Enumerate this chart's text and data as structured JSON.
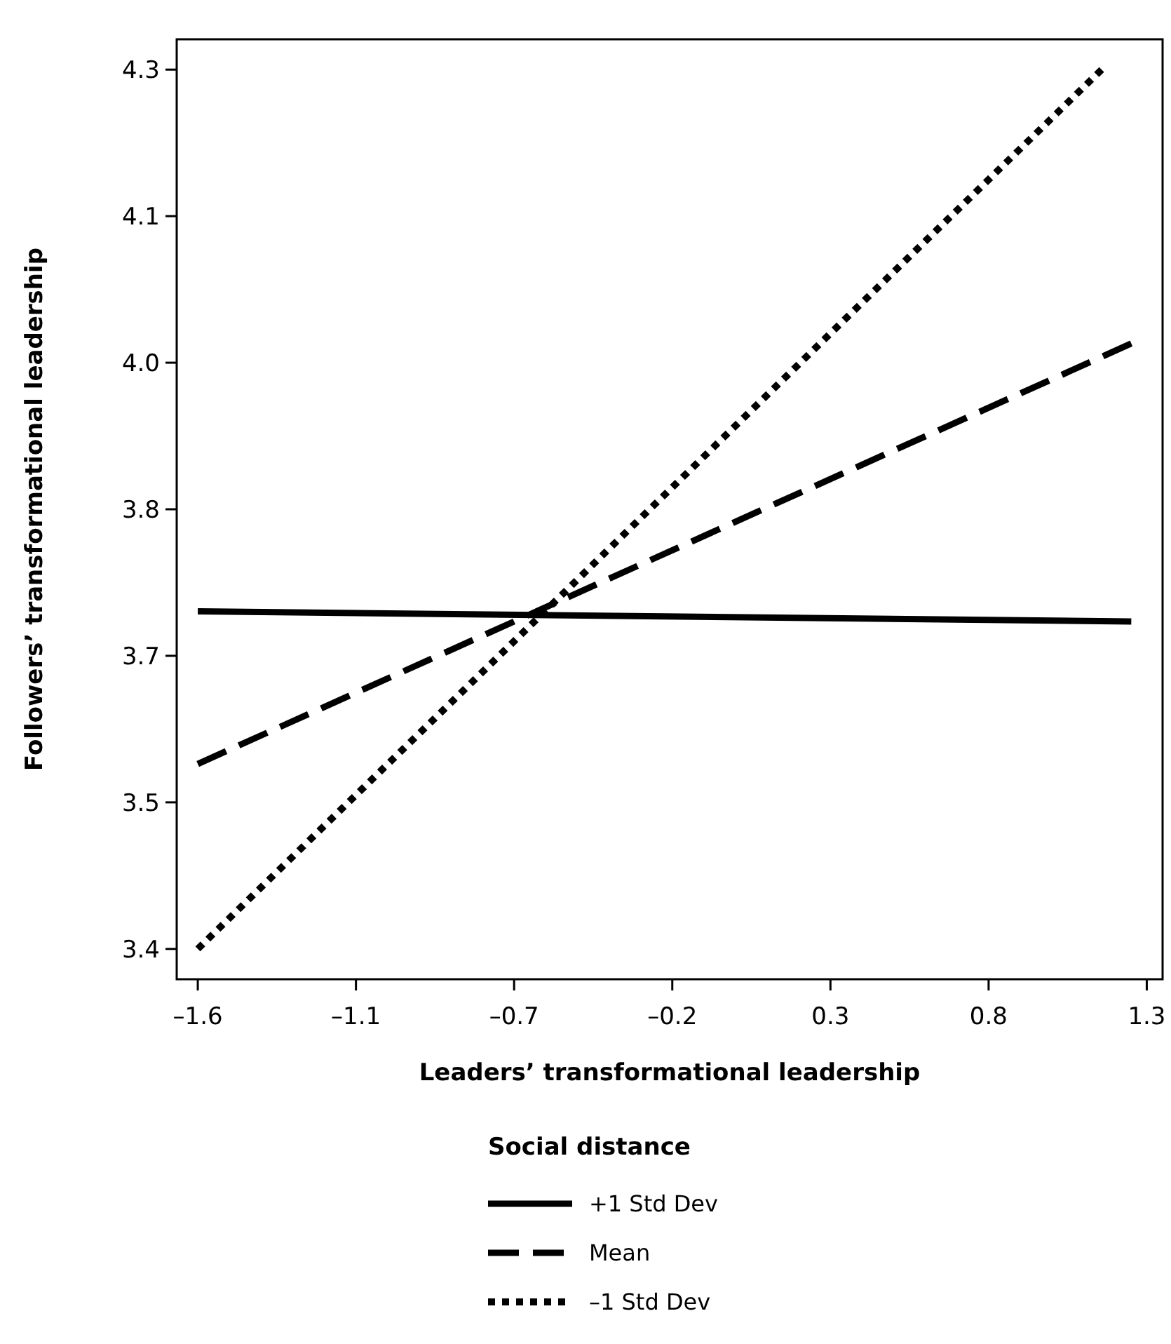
{
  "chart_data": {
    "type": "line",
    "xlabel": "Leaders’ transformational leadership",
    "ylabel": "Followers’ transformational leadership",
    "legend_title": "Social distance",
    "legend": "bottom",
    "marker": "none",
    "xlim": [
      -1.684,
      1.308
    ],
    "ylim": [
      3.365,
      4.295
    ],
    "xticks": [
      {
        "value": -1.62,
        "label": "–1.6"
      },
      {
        "value": -1.14,
        "label": "–1.1"
      },
      {
        "value": -0.66,
        "label": "–0.7"
      },
      {
        "value": -0.18,
        "label": "–0.2"
      },
      {
        "value": 0.3,
        "label": "0.3"
      },
      {
        "value": 0.78,
        "label": "0.8"
      },
      {
        "value": 1.26,
        "label": "1.3"
      }
    ],
    "yticks": [
      {
        "value": 3.395,
        "label": "3.4"
      },
      {
        "value": 3.54,
        "label": "3.5"
      },
      {
        "value": 3.685,
        "label": "3.7"
      },
      {
        "value": 3.83,
        "label": "3.8"
      },
      {
        "value": 3.975,
        "label": "4.0"
      },
      {
        "value": 4.12,
        "label": "4.1"
      },
      {
        "value": 4.265,
        "label": "4.3"
      }
    ],
    "series": [
      {
        "name": "+1 Std Dev",
        "color": "#000000",
        "line_style": "solid",
        "x": [
          -1.62,
          1.213
        ],
        "values": [
          3.729,
          3.719
        ]
      },
      {
        "name": "Mean",
        "color": "#000000",
        "line_style": "dashed",
        "x": [
          -1.62,
          1.213
        ],
        "values": [
          3.578,
          3.994
        ]
      },
      {
        "name": "–1 Std Dev",
        "color": "#000000",
        "line_style": "dotted",
        "x": [
          -1.62,
          1.123
        ],
        "values": [
          3.395,
          4.265
        ]
      }
    ]
  }
}
